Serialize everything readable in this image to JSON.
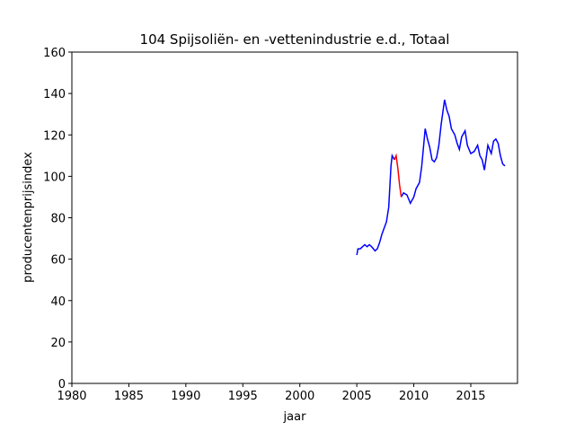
{
  "chart_data": {
    "type": "line",
    "title": "104 Spijsoliën- en -vettenindustrie e.d., Totaal",
    "xlabel": "jaar",
    "ylabel": "producentenprijsindex",
    "xlim": [
      1980,
      2019.1
    ],
    "ylim": [
      0,
      160
    ],
    "xticks": [
      1980,
      1985,
      1990,
      1995,
      2000,
      2005,
      2010,
      2015
    ],
    "yticks": [
      0,
      20,
      40,
      60,
      80,
      100,
      120,
      140,
      160
    ],
    "series": [
      {
        "color": "#0000ff",
        "x": [
          2005.0,
          2005.1,
          2005.3,
          2005.5,
          2005.7,
          2005.9,
          2006.1,
          2006.3,
          2006.6,
          2006.8,
          2007.0,
          2007.2,
          2007.4,
          2007.6,
          2007.8,
          2007.9,
          2008.0,
          2008.1,
          2008.2,
          2008.3,
          2008.6,
          2008.9,
          2009.1,
          2009.4,
          2009.7,
          2010.0,
          2010.2,
          2010.5,
          2010.7,
          2010.9,
          2011.0,
          2011.2,
          2011.4,
          2011.6,
          2011.8,
          2012.0,
          2012.2,
          2012.4,
          2012.7,
          2012.9,
          2013.1,
          2013.3,
          2013.6,
          2013.8,
          2014.0,
          2014.2,
          2014.5,
          2014.7,
          2015.0,
          2015.3,
          2015.6,
          2015.8,
          2016.0,
          2016.2,
          2016.5,
          2016.8,
          2017.0,
          2017.2,
          2017.4,
          2017.6,
          2017.8,
          2018.0
        ],
        "values": [
          62,
          65,
          65,
          66,
          67,
          66,
          67,
          66,
          64,
          65,
          68,
          72,
          75,
          78,
          85,
          95,
          105,
          110,
          109,
          108,
          null,
          90,
          92,
          91,
          87,
          90,
          94,
          97,
          105,
          117,
          123,
          118,
          114,
          108,
          107,
          109,
          115,
          125,
          137,
          132,
          129,
          123,
          120,
          116,
          113,
          119,
          122,
          115,
          111,
          112,
          115,
          110,
          108,
          103,
          115,
          111,
          117,
          118,
          116,
          110,
          106,
          105
        ]
      },
      {
        "color": "#ff0000",
        "x": [
          2008.3,
          2008.45,
          2008.6,
          2008.75,
          2008.9
        ],
        "values": [
          108,
          110,
          104,
          96,
          90
        ]
      }
    ]
  }
}
